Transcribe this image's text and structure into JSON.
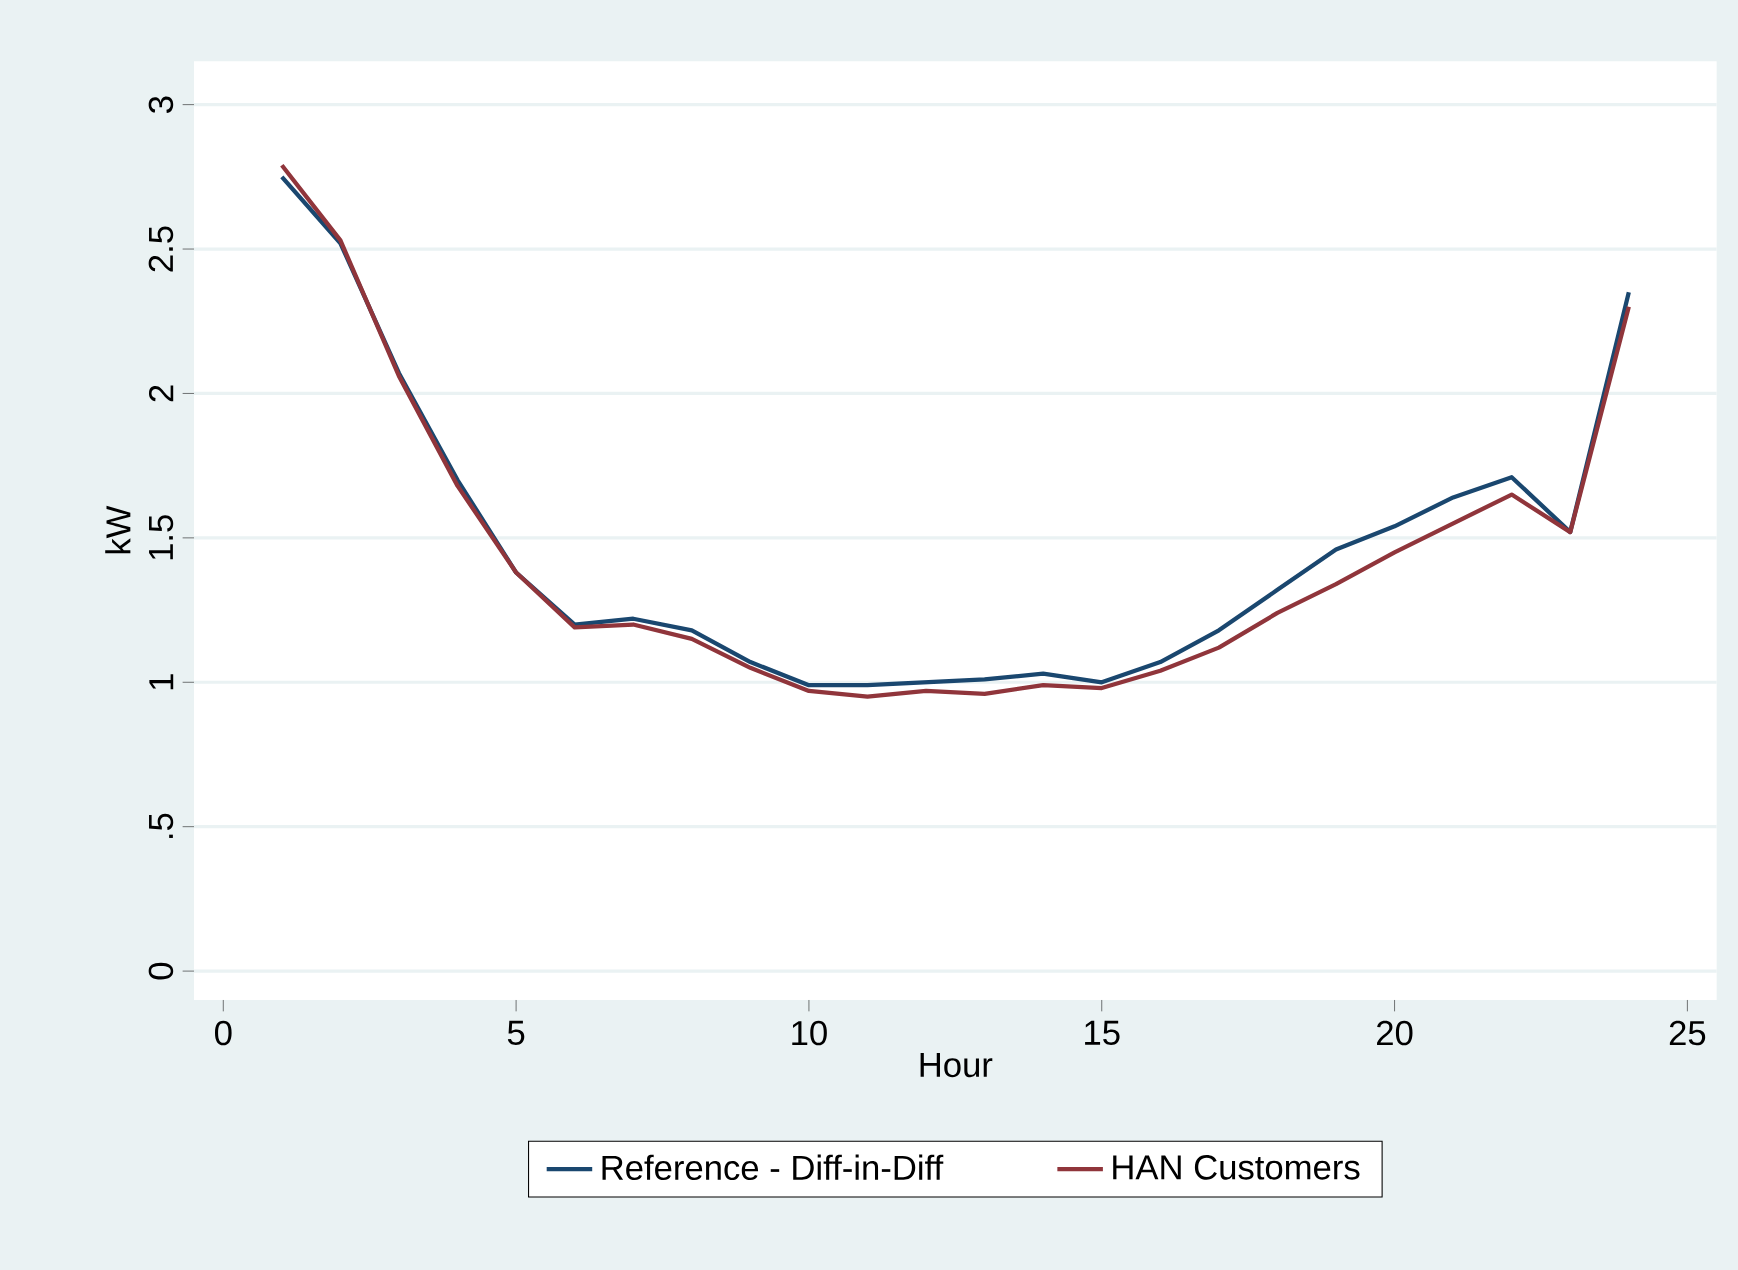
{
  "chart_data": {
    "type": "line",
    "xlabel": "Hour",
    "ylabel": "kW",
    "x": [
      1,
      2,
      3,
      4,
      5,
      6,
      7,
      8,
      9,
      10,
      11,
      12,
      13,
      14,
      15,
      16,
      17,
      18,
      19,
      20,
      21,
      22,
      23,
      24
    ],
    "series": [
      {
        "name": "Reference - Diff-in-Diff",
        "color": "#1a476f",
        "values": [
          2.75,
          2.52,
          2.07,
          1.7,
          1.38,
          1.2,
          1.22,
          1.18,
          1.07,
          0.99,
          0.99,
          1.0,
          1.01,
          1.03,
          1.0,
          1.07,
          1.18,
          1.32,
          1.46,
          1.54,
          1.64,
          1.71,
          1.52,
          2.35
        ]
      },
      {
        "name": "HAN Customers",
        "color": "#90353b",
        "values": [
          2.79,
          2.53,
          2.06,
          1.68,
          1.38,
          1.19,
          1.2,
          1.15,
          1.05,
          0.97,
          0.95,
          0.97,
          0.96,
          0.99,
          0.98,
          1.04,
          1.12,
          1.24,
          1.34,
          1.45,
          1.55,
          1.65,
          1.52,
          2.3
        ]
      }
    ],
    "xlim": [
      -0.5,
      25.5
    ],
    "ylim": [
      -0.1,
      3.15
    ],
    "xticks": [
      0,
      5,
      10,
      15,
      20,
      25
    ],
    "yticks": [
      0,
      {
        "value": 0.5,
        "label": ".5"
      },
      1,
      1.5,
      2,
      2.5,
      3
    ],
    "grid": "y",
    "legend": "bottom",
    "marker": "none",
    "line_style": "solid"
  }
}
